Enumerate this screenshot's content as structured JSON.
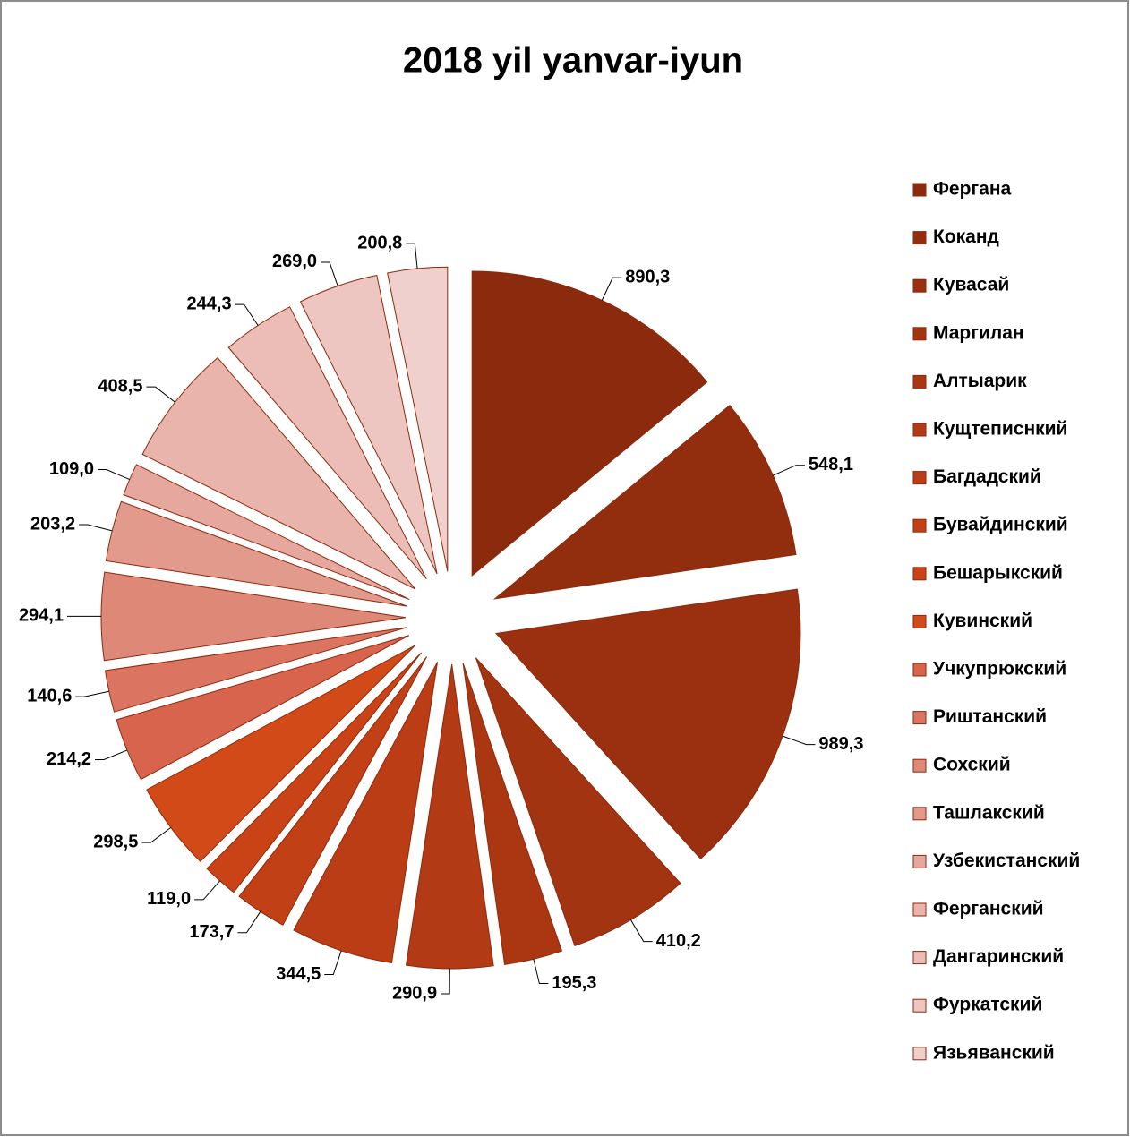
{
  "chart_data": {
    "type": "pie",
    "title": "2018 yil yanvar-iyun",
    "categories": [
      "Фергана",
      "Коканд",
      "Кувасай",
      "Маргилан",
      "Алтыарик",
      "Кущтеписнкий",
      "Багдадский",
      "Бувайдинский",
      "Бешарыкский",
      "Кувинский",
      "Учкупрюкский",
      "Риштанский",
      "Сохский",
      "Ташлакский",
      "Узбекистанский",
      "Ферганский",
      "Дангаринский",
      "Фуркатский",
      "Язьяванский"
    ],
    "values": [
      890.3,
      548.1,
      989.3,
      410.2,
      195.3,
      290.9,
      344.5,
      173.7,
      119.0,
      298.5,
      214.2,
      140.6,
      294.1,
      203.2,
      109.0,
      408.5,
      244.3,
      269.0,
      200.8
    ],
    "value_labels": [
      "890,3",
      "548,1",
      "989,3",
      "410,2",
      "195,3",
      "290,9",
      "344,5",
      "173,7",
      "119,0",
      "298,5",
      "214,2",
      "140,6",
      "294,1",
      "203,2",
      "109,0",
      "408,5",
      "244,3",
      "269,0",
      "200,8"
    ],
    "colors": [
      "#8b2a0c",
      "#922d0d",
      "#9a300f",
      "#a23411",
      "#aa3712",
      "#b23a14",
      "#ba3d15",
      "#c24016",
      "#ca4317",
      "#d24a18",
      "#d8644d",
      "#db7562",
      "#de8878",
      "#e29a8d",
      "#e6a89e",
      "#e9b4ab",
      "#ebbdb6",
      "#edc6c1",
      "#f0d0cc"
    ],
    "legend": "right"
  }
}
